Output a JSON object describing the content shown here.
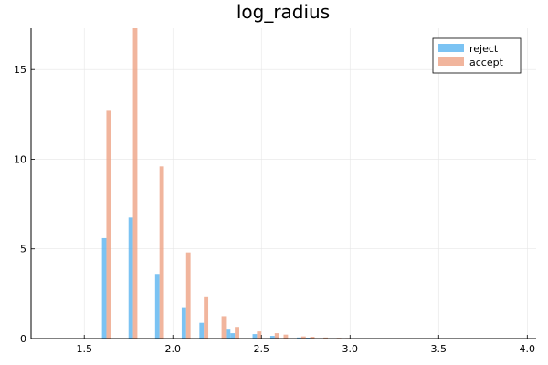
{
  "chart_data": {
    "type": "bar",
    "title": "log_radius",
    "xlabel": "",
    "ylabel": "",
    "xlim": [
      1.2,
      4.05
    ],
    "ylim": [
      0,
      17.3
    ],
    "x_ticks": [
      1.5,
      2.0,
      2.5,
      3.0,
      3.5,
      4.0
    ],
    "x_tick_labels": [
      "1.5",
      "2.0",
      "2.5",
      "3.0",
      "3.5",
      "4.0"
    ],
    "y_ticks": [
      0,
      5,
      10,
      15
    ],
    "y_tick_labels": [
      "0",
      "5",
      "10",
      "15"
    ],
    "bin_width": 0.025,
    "grid": true,
    "legend_position": "top-right",
    "series": [
      {
        "name": "reject",
        "color": "#5ab4f0",
        "bins": [
          [
            1.6,
            5.6
          ],
          [
            1.75,
            6.75
          ],
          [
            1.9,
            3.6
          ],
          [
            2.05,
            1.75
          ],
          [
            2.15,
            0.88
          ],
          [
            2.3,
            0.5
          ],
          [
            2.325,
            0.3
          ],
          [
            2.45,
            0.25
          ],
          [
            2.55,
            0.15
          ],
          [
            2.575,
            0.08
          ],
          [
            2.7,
            0.06
          ],
          [
            2.75,
            0.05
          ],
          [
            2.85,
            0.03
          ],
          [
            2.95,
            0.02
          ]
        ]
      },
      {
        "name": "accept",
        "color": "#eea385",
        "bins": [
          [
            1.625,
            12.7
          ],
          [
            1.775,
            17.3
          ],
          [
            1.925,
            9.6
          ],
          [
            2.075,
            4.8
          ],
          [
            2.175,
            2.35
          ],
          [
            2.275,
            1.25
          ],
          [
            2.35,
            0.65
          ],
          [
            2.475,
            0.4
          ],
          [
            2.575,
            0.3
          ],
          [
            2.625,
            0.22
          ],
          [
            2.725,
            0.12
          ],
          [
            2.775,
            0.1
          ],
          [
            2.85,
            0.06
          ],
          [
            2.925,
            0.04
          ],
          [
            2.975,
            0.03
          ]
        ]
      }
    ]
  }
}
